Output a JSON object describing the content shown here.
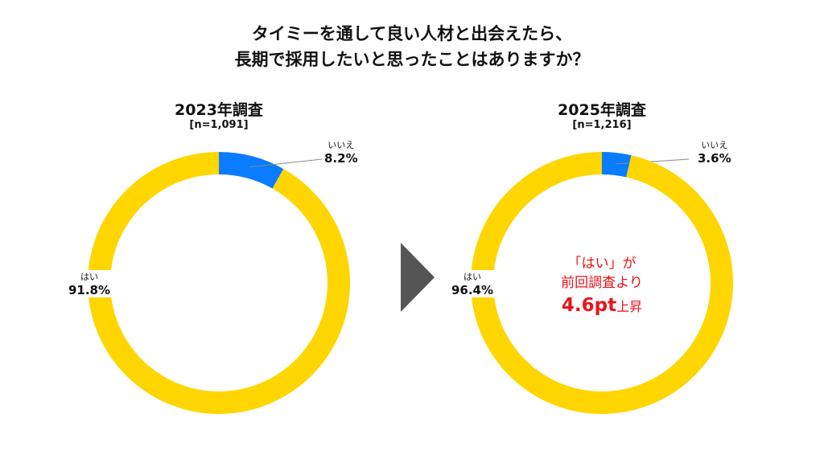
{
  "title": {
    "line1": "タイミーを通して良い人材と出会えたら、",
    "line2": "長期で採用したいと思ったことはありますか？"
  },
  "colors": {
    "yes": "#FFD600",
    "no": "#0A7CFF",
    "arrow": "#555555",
    "highlight": "#E8141B"
  },
  "chart_data": [
    {
      "type": "pie",
      "donut": true,
      "title": "2023年調査",
      "subtitle": "[n=1,091]",
      "categories": [
        "はい",
        "いいえ"
      ],
      "values": [
        91.8,
        8.2
      ],
      "labels": [
        "91.8%",
        "8.2%"
      ]
    },
    {
      "type": "pie",
      "donut": true,
      "title": "2025年調査",
      "subtitle": "[n=1,216]",
      "categories": [
        "はい",
        "いいえ"
      ],
      "values": [
        96.4,
        3.6
      ],
      "labels": [
        "96.4%",
        "3.6%"
      ]
    }
  ],
  "annotation": {
    "line1": "「はい」が",
    "line2": "前回調査より",
    "value": "4.6pt",
    "suffix": "上昇"
  }
}
